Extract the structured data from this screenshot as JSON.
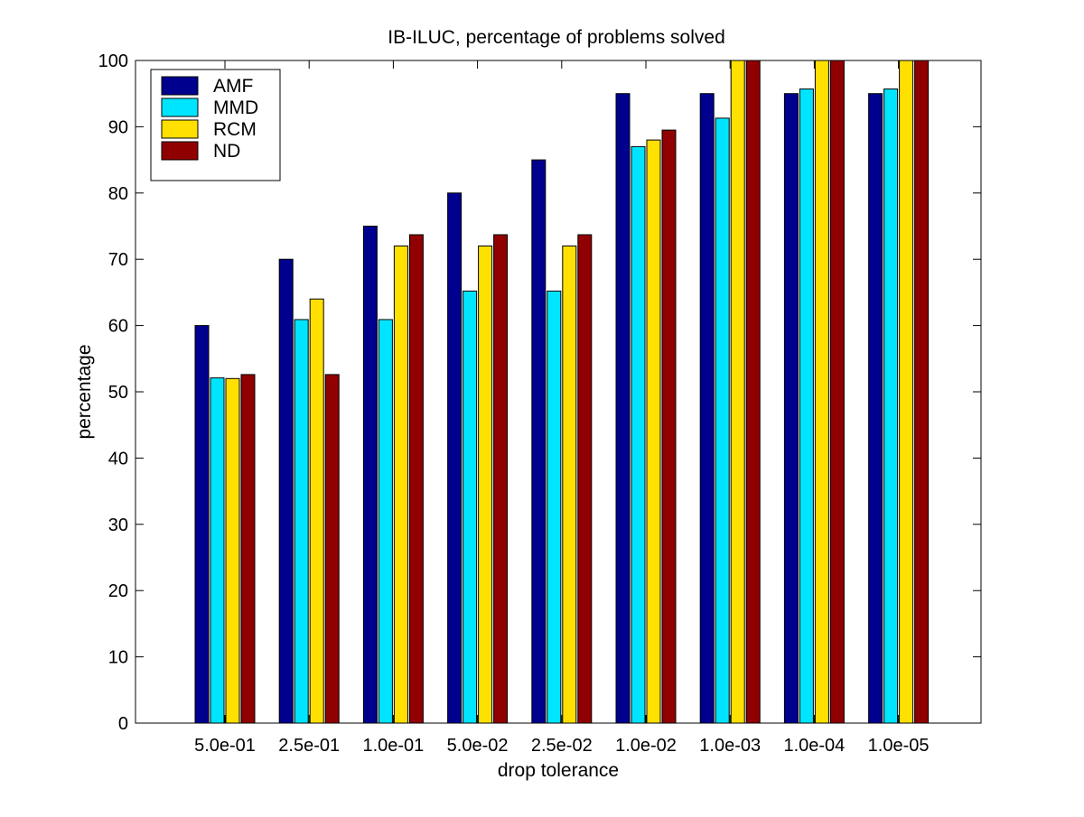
{
  "chart_data": {
    "type": "bar",
    "title": "IB-ILUC, percentage of problems solved",
    "xlabel": "drop tolerance",
    "ylabel": "percentage",
    "ylim": [
      0,
      100
    ],
    "yticks": [
      0,
      10,
      20,
      30,
      40,
      50,
      60,
      70,
      80,
      90,
      100
    ],
    "categories": [
      "5.0e-01",
      "2.5e-01",
      "1.0e-01",
      "5.0e-02",
      "2.5e-02",
      "1.0e-02",
      "1.0e-03",
      "1.0e-04",
      "1.0e-05"
    ],
    "series": [
      {
        "name": "AMF",
        "color": "#00008f",
        "values": [
          60,
          70,
          75,
          80,
          85,
          95,
          95,
          95,
          95
        ]
      },
      {
        "name": "MMD",
        "color": "#00e5ff",
        "values": [
          52.1,
          60.9,
          60.9,
          65.2,
          65.2,
          87.0,
          91.3,
          95.7,
          95.7
        ]
      },
      {
        "name": "RCM",
        "color": "#ffe000",
        "values": [
          52,
          64,
          72,
          72,
          72,
          88,
          100,
          100,
          100
        ]
      },
      {
        "name": "ND",
        "color": "#900000",
        "values": [
          52.6,
          52.6,
          73.7,
          73.7,
          73.7,
          89.5,
          100,
          100,
          100
        ]
      }
    ],
    "grid": false,
    "legend_position": "top-left"
  }
}
